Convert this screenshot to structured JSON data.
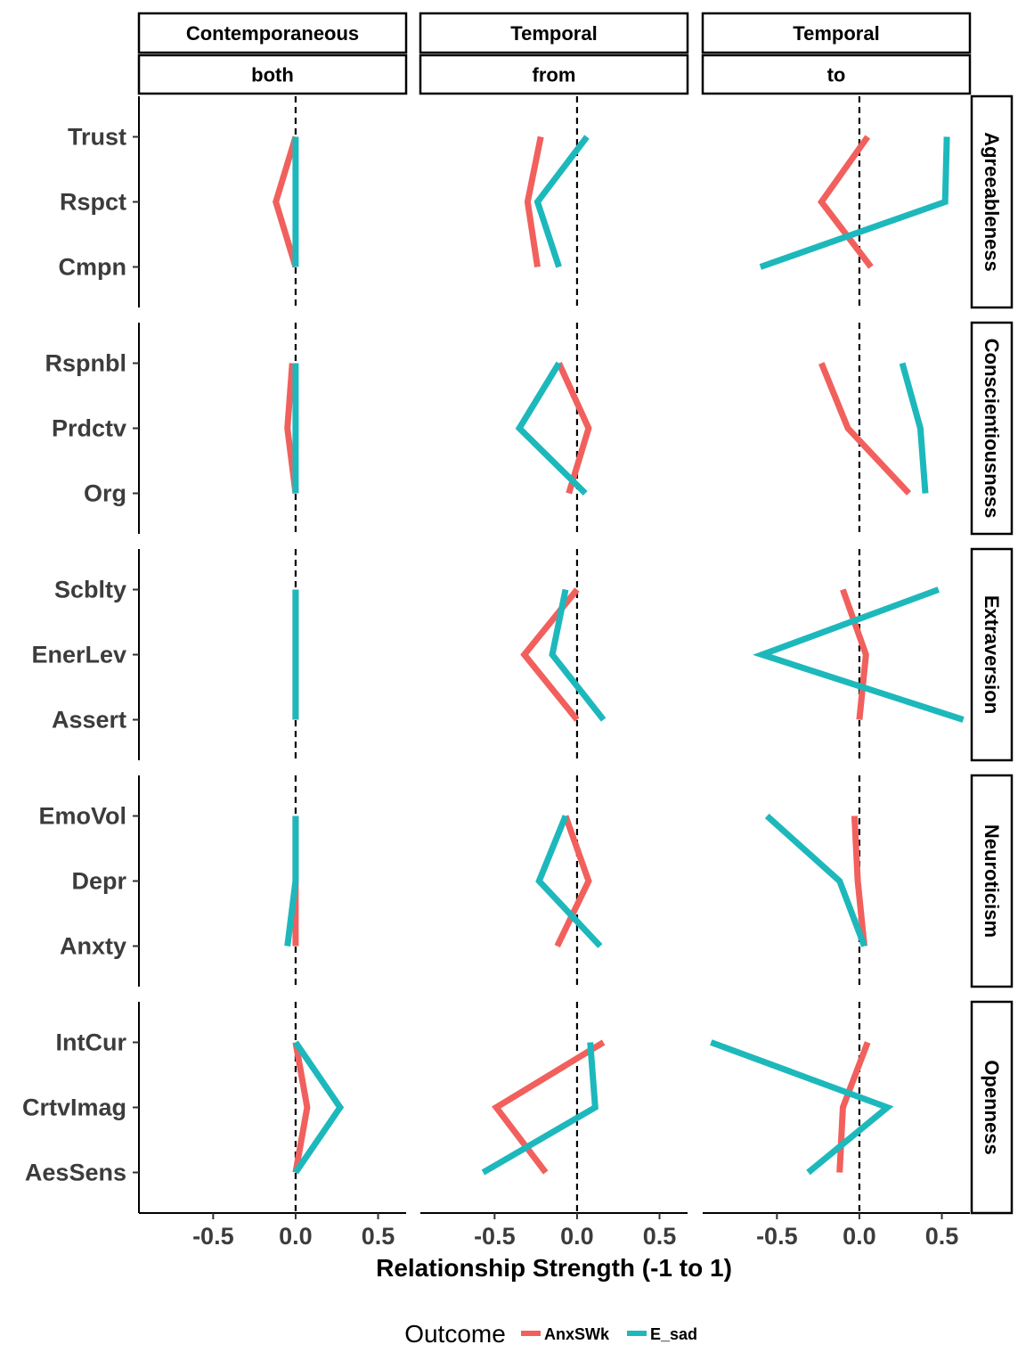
{
  "chart_data": {
    "type": "line",
    "xlabel": "Relationship Strength (-1 to 1)",
    "xlim": [
      -0.95,
      0.67
    ],
    "xticks": [
      -0.5,
      0.0,
      0.5
    ],
    "xtick_labels": [
      "-0.5",
      "0.0",
      "0.5"
    ],
    "reference_line_x": 0,
    "columns": [
      {
        "top": "Contemporaneous",
        "bottom": "both"
      },
      {
        "top": "Temporal",
        "bottom": "from"
      },
      {
        "top": "Temporal",
        "bottom": "to"
      }
    ],
    "rows": [
      {
        "name": "Agreeableness",
        "items": [
          "Trust",
          "Rspct",
          "Cmpn"
        ]
      },
      {
        "name": "Conscientiousness",
        "items": [
          "Rspnbl",
          "Prdctv",
          "Org"
        ]
      },
      {
        "name": "Extraversion",
        "items": [
          "Scblty",
          "EnerLev",
          "Assert"
        ]
      },
      {
        "name": "Neuroticism",
        "items": [
          "EmoVol",
          "Depr",
          "Anxty"
        ]
      },
      {
        "name": "Openness",
        "items": [
          "IntCur",
          "CrtvImag",
          "AesSens"
        ]
      }
    ],
    "legend": {
      "title": "Outcome",
      "position": "bottom"
    },
    "series": [
      {
        "name": "AnxSWk",
        "color": "#F1605D",
        "values": [
          [
            [
              0.0,
              -0.12,
              0.0
            ],
            [
              -0.22,
              -0.3,
              -0.24
            ],
            [
              0.05,
              -0.23,
              0.07
            ]
          ],
          [
            [
              -0.02,
              -0.05,
              0.0
            ],
            [
              -0.11,
              0.07,
              -0.05
            ],
            [
              -0.23,
              -0.07,
              0.3
            ]
          ],
          [
            [
              0.0,
              0.0,
              0.0
            ],
            [
              0.0,
              -0.32,
              0.0
            ],
            [
              -0.1,
              0.04,
              0.0
            ]
          ],
          [
            [
              0.0,
              0.0,
              0.0
            ],
            [
              -0.07,
              0.07,
              -0.12
            ],
            [
              -0.03,
              -0.01,
              0.03
            ]
          ],
          [
            [
              0.0,
              0.07,
              0.0
            ],
            [
              0.16,
              -0.49,
              -0.19
            ],
            [
              0.05,
              -0.1,
              -0.12
            ]
          ]
        ]
      },
      {
        "name": "E_sad",
        "color": "#1DB8BC",
        "values": [
          [
            [
              0.0,
              0.0,
              0.0
            ],
            [
              0.06,
              -0.24,
              -0.11
            ],
            [
              0.53,
              0.52,
              -0.6
            ]
          ],
          [
            [
              0.0,
              0.0,
              0.0
            ],
            [
              -0.11,
              -0.35,
              0.05
            ],
            [
              0.26,
              0.37,
              0.4
            ]
          ],
          [
            [
              0.0,
              0.0,
              0.0
            ],
            [
              -0.07,
              -0.15,
              0.16
            ],
            [
              0.48,
              -0.59,
              0.63
            ]
          ],
          [
            [
              0.0,
              0.0,
              -0.05
            ],
            [
              -0.07,
              -0.23,
              0.14
            ],
            [
              -0.56,
              -0.12,
              0.03
            ]
          ],
          [
            [
              0.0,
              0.27,
              0.0
            ],
            [
              0.08,
              0.11,
              -0.57
            ],
            [
              -0.9,
              0.17,
              -0.31
            ]
          ]
        ]
      }
    ]
  }
}
